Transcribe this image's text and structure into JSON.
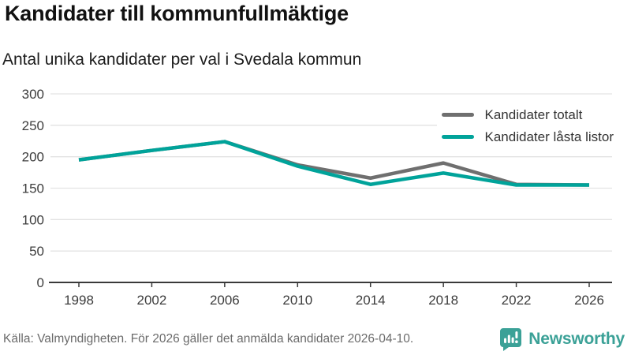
{
  "header": {
    "title": "Kandidater till kommunfullmäktige",
    "subtitle": "Antal unika kandidater per val i Svedala kommun"
  },
  "chart_data": {
    "type": "line",
    "x": [
      1998,
      2002,
      2006,
      2010,
      2014,
      2018,
      2022,
      2026
    ],
    "series": [
      {
        "name": "Kandidater totalt",
        "color": "#6f6f6f",
        "values": [
          195,
          210,
          224,
          187,
          166,
          190,
          156,
          155
        ]
      },
      {
        "name": "Kandidater låsta listor",
        "color": "#00a39a",
        "values": [
          195,
          210,
          224,
          185,
          156,
          174,
          155,
          155
        ]
      }
    ],
    "title": "Kandidater till kommunfullmäktige",
    "subtitle": "Antal unika kandidater per val i Svedala kommun",
    "xlabel": "",
    "ylabel": "",
    "ylim": [
      0,
      300
    ],
    "yticks": [
      0,
      50,
      100,
      150,
      200,
      250,
      300
    ],
    "grid": true,
    "legend_position": "top-right"
  },
  "footer": {
    "source": "Källa: Valmyndigheten. För 2026 gäller det anmälda kandidater 2026-04-10.",
    "brand": "Newsworthy"
  },
  "colors": {
    "accent": "#00a39a",
    "series_gray": "#6f6f6f",
    "grid": "#e3e3e3",
    "axis": "#3a3a3a",
    "tick_text": "#3d3d3d",
    "muted_text": "#6b6b6b",
    "brand_teal": "#3ba197"
  }
}
